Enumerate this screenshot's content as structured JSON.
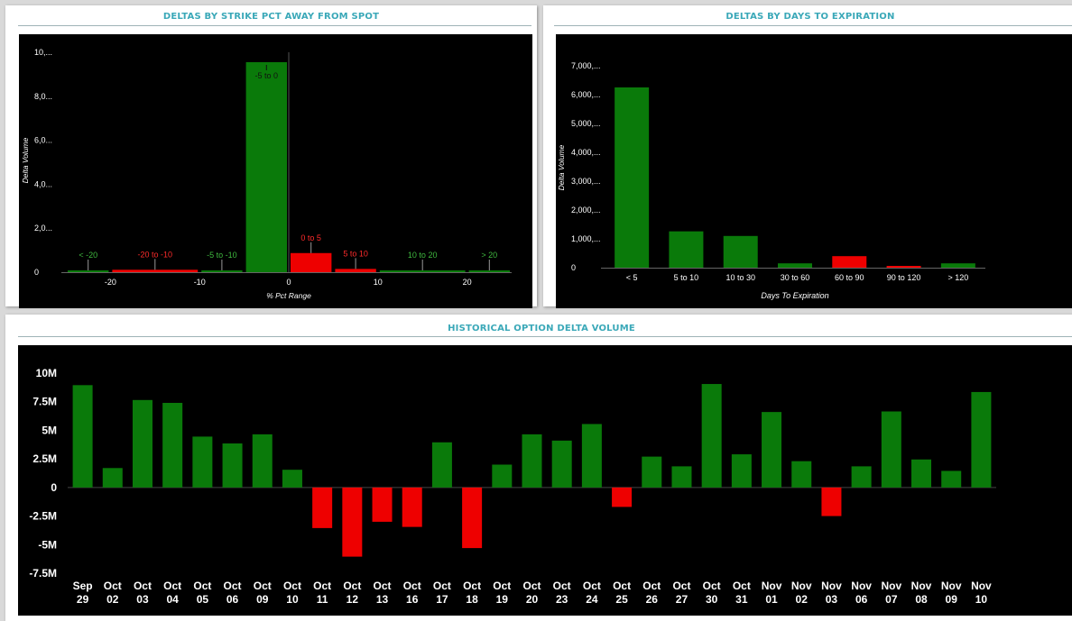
{
  "colors": {
    "positive": "#0a7a0a",
    "negative": "#ee0000",
    "title": "#3aa8b8",
    "plot_bg": "#000000"
  },
  "panels": {
    "strike": {
      "title": "DELTAS BY STRIKE PCT AWAY FROM SPOT"
    },
    "expiration": {
      "title": "DELTAS BY DAYS TO EXPIRATION"
    },
    "history": {
      "title": "HISTORICAL OPTION DELTA VOLUME"
    }
  },
  "chart_data": [
    {
      "type": "bar",
      "title": "DELTAS BY STRIKE PCT AWAY FROM SPOT",
      "xlabel": "% Pct Range",
      "ylabel": "Delta Volume",
      "xlim": [
        -25,
        25
      ],
      "ylim": [
        0,
        10000000
      ],
      "y_tick_values": [
        0,
        2000000,
        4000000,
        6000000,
        8000000,
        10000000
      ],
      "y_tick_labels": [
        "0",
        "2,0...",
        "4,0...",
        "6,0...",
        "8,0...",
        "10,..."
      ],
      "x_ticks": [
        -20,
        -10,
        0,
        10,
        20
      ],
      "bars": [
        {
          "label": "< -20",
          "x0": -25,
          "x1": -20,
          "value": 40000,
          "sign": "positive"
        },
        {
          "label": "-20 to -10",
          "x0": -20,
          "x1": -10,
          "value": 110000,
          "sign": "negative"
        },
        {
          "label": "-5 to -10",
          "x0": -10,
          "x1": -5,
          "value": 50000,
          "sign": "positive"
        },
        {
          "label": "-5 to 0",
          "x0": -5,
          "x1": 0,
          "value": 9550000,
          "sign": "positive"
        },
        {
          "label": "0 to 5",
          "x0": 0,
          "x1": 5,
          "value": 870000,
          "sign": "negative"
        },
        {
          "label": "5 to 10",
          "x0": 5,
          "x1": 10,
          "value": 150000,
          "sign": "negative"
        },
        {
          "label": "10 to 20",
          "x0": 10,
          "x1": 20,
          "value": 20000,
          "sign": "positive"
        },
        {
          "label": "> 20",
          "x0": 20,
          "x1": 25,
          "value": 10000,
          "sign": "positive"
        }
      ]
    },
    {
      "type": "bar",
      "title": "DELTAS BY DAYS TO EXPIRATION",
      "xlabel": "Days To Expiration",
      "ylabel": "Delta Volume",
      "ylim": [
        0,
        7000000
      ],
      "y_tick_values": [
        0,
        1000000,
        2000000,
        3000000,
        4000000,
        5000000,
        6000000,
        7000000
      ],
      "y_tick_labels": [
        "0",
        "1,000,...",
        "2,000,...",
        "3,000,...",
        "4,000,...",
        "5,000,...",
        "6,000,...",
        "7,000,..."
      ],
      "categories": [
        "< 5",
        "5 to 10",
        "10 to 30",
        "30 to 60",
        "60 to 90",
        "90 to 120",
        "> 120"
      ],
      "values": [
        6250000,
        1260000,
        1100000,
        150000,
        400000,
        30000,
        150000
      ],
      "signs": [
        "positive",
        "positive",
        "positive",
        "positive",
        "negative",
        "negative",
        "positive"
      ]
    },
    {
      "type": "bar",
      "title": "HISTORICAL OPTION DELTA VOLUME",
      "xlabel": "",
      "ylabel": "",
      "ylim": [
        -7500000,
        10000000
      ],
      "y_tick_values": [
        10000000,
        7500000,
        5000000,
        2500000,
        0,
        -2500000,
        -5000000,
        -7500000
      ],
      "y_tick_labels": [
        "10M",
        "7.5M",
        "5M",
        "2.5M",
        "0",
        "-2.5M",
        "-5M",
        "-7.5M"
      ],
      "categories": [
        [
          "Sep",
          "29"
        ],
        [
          "Oct",
          "02"
        ],
        [
          "Oct",
          "03"
        ],
        [
          "Oct",
          "04"
        ],
        [
          "Oct",
          "05"
        ],
        [
          "Oct",
          "06"
        ],
        [
          "Oct",
          "09"
        ],
        [
          "Oct",
          "10"
        ],
        [
          "Oct",
          "11"
        ],
        [
          "Oct",
          "12"
        ],
        [
          "Oct",
          "13"
        ],
        [
          "Oct",
          "16"
        ],
        [
          "Oct",
          "17"
        ],
        [
          "Oct",
          "18"
        ],
        [
          "Oct",
          "19"
        ],
        [
          "Oct",
          "20"
        ],
        [
          "Oct",
          "23"
        ],
        [
          "Oct",
          "24"
        ],
        [
          "Oct",
          "25"
        ],
        [
          "Oct",
          "26"
        ],
        [
          "Oct",
          "27"
        ],
        [
          "Oct",
          "30"
        ],
        [
          "Oct",
          "31"
        ],
        [
          "Nov",
          "01"
        ],
        [
          "Nov",
          "02"
        ],
        [
          "Nov",
          "03"
        ],
        [
          "Nov",
          "06"
        ],
        [
          "Nov",
          "07"
        ],
        [
          "Nov",
          "08"
        ],
        [
          "Nov",
          "09"
        ],
        [
          "Nov",
          "10"
        ]
      ],
      "values": [
        8950000,
        1700000,
        7650000,
        7400000,
        4450000,
        3850000,
        4650000,
        1550000,
        -3550000,
        -6050000,
        -3000000,
        -3450000,
        3950000,
        -5300000,
        2000000,
        4650000,
        4100000,
        5550000,
        -1700000,
        2700000,
        1850000,
        9050000,
        2900000,
        6600000,
        2300000,
        -2500000,
        1850000,
        6650000,
        2450000,
        1450000,
        8350000
      ]
    }
  ]
}
